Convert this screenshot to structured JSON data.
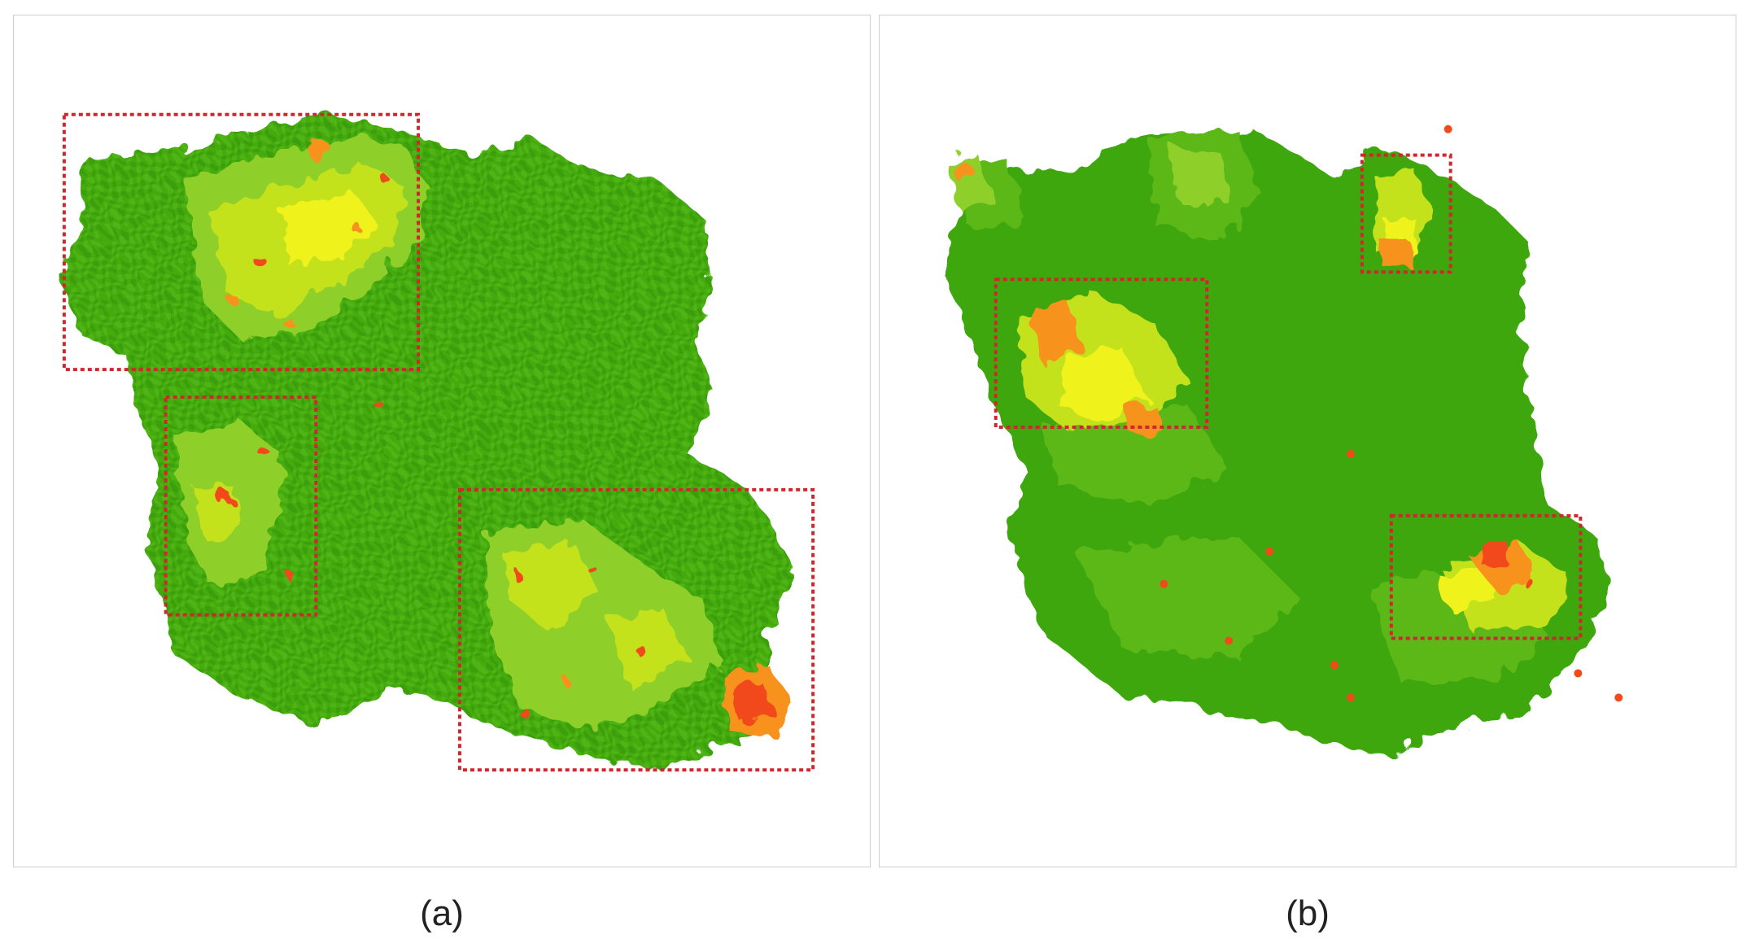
{
  "figure": {
    "panels": [
      {
        "caption": "(a)"
      },
      {
        "caption": "(b)"
      }
    ],
    "colors": {
      "base_green": "#3ea70b",
      "mid_green": "#5cb819",
      "light_green": "#8fcf2a",
      "yellow_green": "#c3e21c",
      "yellow": "#f0f21a",
      "orange": "#f7931e",
      "red": "#f24a1a",
      "highlight_box": "#d0262e",
      "panel_border": "#cfcfcf"
    }
  }
}
